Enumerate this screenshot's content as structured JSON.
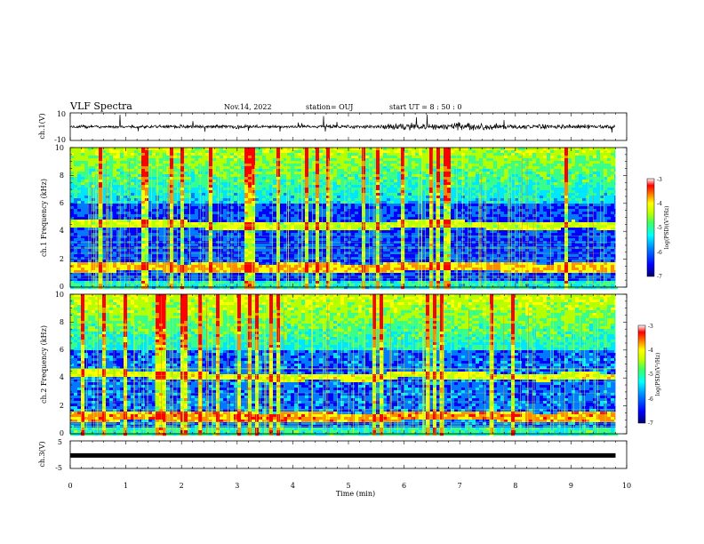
{
  "header": {
    "title": "VLF Spectra",
    "date": "Nov.14, 2022",
    "station": "station= OUJ",
    "start": "start  UT =   8  : 50 : 0"
  },
  "chart_data": [
    {
      "type": "line",
      "panel": "ch1-waveform",
      "ylabel": "ch.1(V)",
      "ylim": [
        -10,
        10
      ],
      "yticks": [
        "10",
        "-10"
      ],
      "x": [
        0,
        0.5,
        1,
        1.5,
        2,
        2.5,
        3,
        3.5,
        4,
        4.5,
        5,
        5.5,
        6,
        6.5,
        7,
        7.5,
        8,
        8.5,
        9,
        9.5,
        9.8
      ],
      "amplitude_envelope": [
        1.2,
        1.0,
        1.1,
        1.0,
        1.2,
        1.1,
        1.6,
        1.1,
        1.0,
        1.3,
        1.0,
        1.1,
        2.6,
        2.4,
        2.8,
        2.2,
        1.4,
        1.6,
        1.5,
        1.3,
        1.1
      ]
    },
    {
      "type": "heatmap",
      "panel": "ch1-spectrogram",
      "ylabel": "ch.1  Frequency (kHz)",
      "yticks": [
        "0",
        "2",
        "4",
        "6",
        "8",
        "10"
      ],
      "ylim": [
        0,
        10
      ],
      "colorbar_label": "log(PSD)(V²/Hz)",
      "colorbar_ticks": [
        "-3",
        "-4",
        "-5",
        "-6",
        "-7"
      ],
      "colorbar_range": [
        -7,
        -3
      ],
      "x": [
        0,
        0.5,
        1,
        1.5,
        2,
        2.5,
        3,
        3.5,
        4,
        4.5,
        5,
        5.5,
        6,
        6.5,
        7,
        7.5,
        8,
        8.5,
        9,
        9.5,
        9.8
      ],
      "band_low_khz": [
        1.5,
        1.5,
        1.6,
        1.6,
        1.4,
        1.5,
        1.5,
        1.4,
        1.5,
        1.5,
        1.4,
        1.4,
        1.6,
        1.6,
        1.6,
        1.6,
        1.5,
        1.4,
        1.5,
        1.5,
        1.5
      ],
      "band_high_khz": [
        4.7,
        4.7,
        4.7,
        4.6,
        4.6,
        4.5,
        4.5,
        4.4,
        4.4,
        4.5,
        4.4,
        4.4,
        4.7,
        4.6,
        4.6,
        4.5,
        4.5,
        4.4,
        4.6,
        4.5,
        4.5
      ]
    },
    {
      "type": "heatmap",
      "panel": "ch2-spectrogram",
      "ylabel": "ch.2  Frequency (kHz)",
      "yticks": [
        "0",
        "2",
        "4",
        "6",
        "8",
        "10"
      ],
      "ylim": [
        0,
        10
      ],
      "colorbar_label": "log(PSD)(V²/Hz)",
      "colorbar_ticks": [
        "-3",
        "-4",
        "-5",
        "-6",
        "-7"
      ],
      "colorbar_range": [
        -7,
        -3
      ],
      "x": [
        0,
        0.5,
        1,
        1.5,
        2,
        2.5,
        3,
        3.5,
        4,
        4.5,
        5,
        5.5,
        6,
        6.5,
        7,
        7.5,
        8,
        8.5,
        9,
        9.5,
        9.8
      ],
      "band_low_khz": [
        1.3,
        1.3,
        1.4,
        1.4,
        1.3,
        1.3,
        1.3,
        1.2,
        1.3,
        1.3,
        1.2,
        1.2,
        1.4,
        1.4,
        1.4,
        1.4,
        1.3,
        1.2,
        1.3,
        1.3,
        1.3
      ],
      "band_high_khz": [
        4.4,
        4.4,
        4.4,
        4.3,
        4.3,
        4.2,
        4.2,
        4.1,
        4.1,
        4.2,
        4.1,
        4.1,
        4.4,
        4.3,
        4.3,
        4.2,
        4.2,
        4.1,
        4.3,
        4.2,
        4.2
      ]
    },
    {
      "type": "line",
      "panel": "ch3-waveform",
      "ylabel": "ch.3(V)",
      "ylim": [
        -5,
        5
      ],
      "yticks": [
        "5",
        "-5"
      ],
      "x": [
        0,
        9.8
      ],
      "y": [
        -0.3,
        -0.3
      ]
    }
  ],
  "xaxis": {
    "label": "Time  (min)",
    "range": [
      0,
      10
    ],
    "ticks": [
      "0",
      "1",
      "2",
      "3",
      "4",
      "5",
      "6",
      "7",
      "8",
      "9",
      "10"
    ]
  },
  "colors": {
    "ink": "#000000",
    "grid_green": "#b6ff3a",
    "colormap": [
      "#00007a",
      "#0000ff",
      "#0078ff",
      "#00e6ff",
      "#39ff8a",
      "#b6ff00",
      "#ffff00",
      "#ff8a00",
      "#ff0000",
      "#ffffff"
    ]
  }
}
